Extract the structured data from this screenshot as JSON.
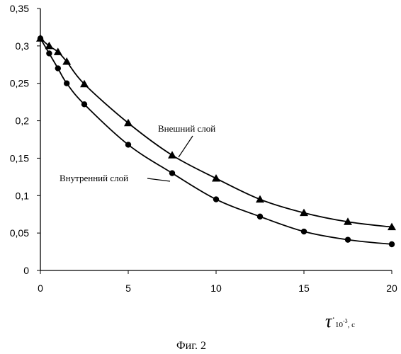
{
  "chart_data": {
    "type": "line",
    "xlim": [
      0,
      20
    ],
    "ylim": [
      0,
      0.35
    ],
    "x_ticks": [
      "0",
      "5",
      "10",
      "15",
      "20"
    ],
    "y_ticks": [
      "0",
      "0,05",
      "0,1",
      "0,15",
      "0,2",
      "0,25",
      "0,3",
      "0,35"
    ],
    "grid": false,
    "xlabel": {
      "symbol": "τ",
      "dot": "·",
      "scale": "10",
      "exponent": "-3",
      "unit": ", с"
    },
    "series": [
      {
        "name": "Внешний слой",
        "marker": "triangle",
        "x": [
          0,
          0.5,
          1,
          1.5,
          2.5,
          5,
          7.5,
          10,
          12.5,
          15,
          17.5,
          20
        ],
        "y": [
          0.31,
          0.3,
          0.292,
          0.279,
          0.249,
          0.197,
          0.154,
          0.123,
          0.095,
          0.077,
          0.065,
          0.058
        ]
      },
      {
        "name": "Внутренний слой",
        "marker": "circle",
        "x": [
          0,
          0.5,
          1,
          1.5,
          2.5,
          5,
          7.5,
          10,
          12.5,
          15,
          17.5,
          20
        ],
        "y": [
          0.31,
          0.29,
          0.27,
          0.25,
          0.222,
          0.168,
          0.13,
          0.095,
          0.072,
          0.052,
          0.041,
          0.035
        ]
      }
    ]
  },
  "caption": "Фиг. 2"
}
